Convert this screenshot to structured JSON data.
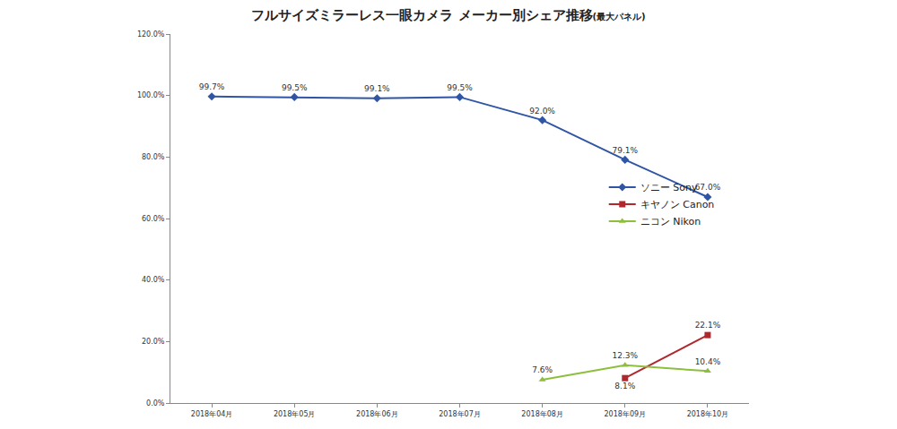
{
  "chart_data": {
    "type": "line",
    "title": "フルサイズミラーレス一眼カメラ メーカー別シェア推移",
    "subtitle": "(最大パネル)",
    "categories": [
      "2018年04月",
      "2018年05月",
      "2018年06月",
      "2018年07月",
      "2018年08月",
      "2018年09月",
      "2018年10月"
    ],
    "series": [
      {
        "name": "ソニー Sony",
        "color": "#2f55a4",
        "marker": "diamond",
        "values": [
          99.7,
          99.5,
          99.1,
          99.5,
          92.0,
          79.1,
          67.0
        ],
        "value_labels": [
          "99.7%",
          "99.5%",
          "99.1%",
          "99.5%",
          "92.0%",
          "79.1%",
          "67.0%"
        ]
      },
      {
        "name": "キヤノン Canon",
        "color": "#b0282e",
        "marker": "square",
        "values": [
          null,
          null,
          null,
          null,
          null,
          8.1,
          22.1
        ],
        "value_labels": [
          null,
          null,
          null,
          null,
          null,
          "8.1%",
          "22.1%"
        ]
      },
      {
        "name": "ニコン Nikon",
        "color": "#8dbf3d",
        "marker": "triangle-up",
        "values": [
          null,
          null,
          null,
          null,
          7.6,
          12.3,
          10.4
        ],
        "value_labels": [
          null,
          null,
          null,
          null,
          "7.6%",
          "12.3%",
          "10.4%"
        ]
      }
    ],
    "ylim": [
      0,
      120
    ],
    "yticks": [
      {
        "value": 0,
        "label": "0.0%"
      },
      {
        "value": 20,
        "label": "20.0%"
      },
      {
        "value": 40,
        "label": "40.0%"
      },
      {
        "value": 60,
        "label": "60.0%"
      },
      {
        "value": 80,
        "label": "80.0%"
      },
      {
        "value": 100,
        "label": "100.0%"
      },
      {
        "value": 120,
        "label": "120.0%"
      }
    ],
    "grid": false,
    "legend": "right",
    "data_labels": true
  }
}
